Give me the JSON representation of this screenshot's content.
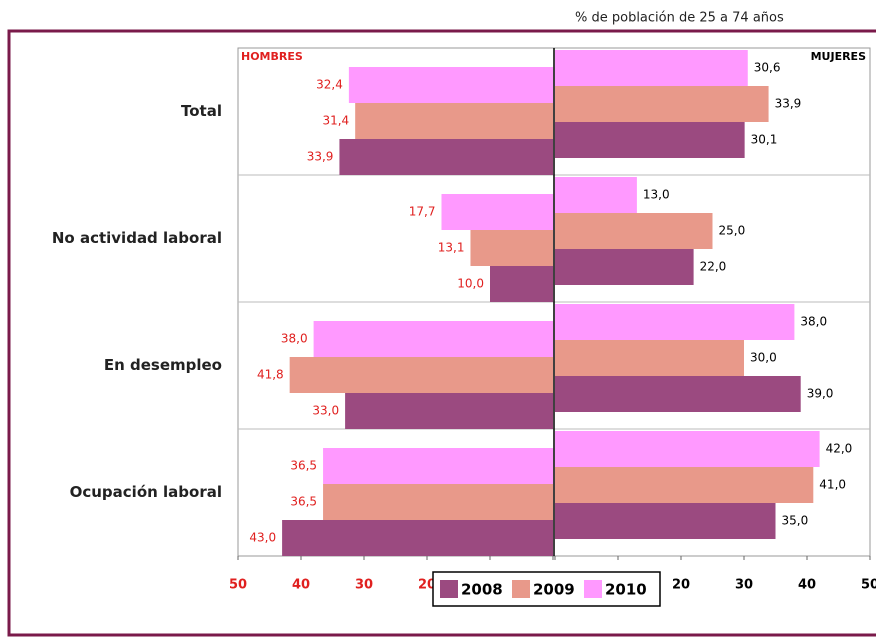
{
  "chart_data": {
    "type": "butterfly",
    "note": "% de población de 25 a 74 años",
    "categories": [
      "Total",
      "No actividad laboral",
      "En desempleo",
      "Ocupación laboral"
    ],
    "series": [
      {
        "name": "2008",
        "color": "#9b4a80"
      },
      {
        "name": "2009",
        "color": "#e8998a"
      },
      {
        "name": "2010",
        "color": "#ff99ff"
      }
    ],
    "panels": [
      {
        "title": "HOMBRES",
        "xlim": [
          50,
          0
        ],
        "xticks": [
          50,
          40,
          30,
          20,
          10,
          0
        ],
        "label_color": "#e0201f",
        "data": [
          {
            "values": [
              33.9,
              10.0,
              33.0,
              43.0
            ],
            "value_labels": [
              "33,9",
              "10,0",
              "33,0",
              "43,0"
            ]
          },
          {
            "values": [
              31.4,
              13.1,
              41.8,
              36.5
            ],
            "value_labels": [
              "31,4",
              "13,1",
              "41,8",
              "36,5"
            ]
          },
          {
            "values": [
              32.4,
              17.7,
              38.0,
              36.5
            ],
            "value_labels": [
              "32,4",
              "17,7",
              "38,0",
              "36,5"
            ]
          }
        ]
      },
      {
        "title": "MUJERES",
        "xlim": [
          0,
          50
        ],
        "xticks": [
          0,
          10,
          20,
          30,
          40,
          50
        ],
        "label_color": "#000000",
        "data": [
          {
            "values": [
              30.1,
              22.0,
              39.0,
              35.0
            ],
            "value_labels": [
              "30,1",
              "22,0",
              "39,0",
              "35,0"
            ]
          },
          {
            "values": [
              33.9,
              25.0,
              30.0,
              41.0
            ],
            "value_labels": [
              "33,9",
              "25,0",
              "30,0",
              "41,0"
            ]
          },
          {
            "values": [
              30.6,
              13.0,
              38.0,
              42.0
            ],
            "value_labels": [
              "30,6",
              "13,0",
              "38,0",
              "42,0"
            ]
          }
        ]
      }
    ]
  }
}
